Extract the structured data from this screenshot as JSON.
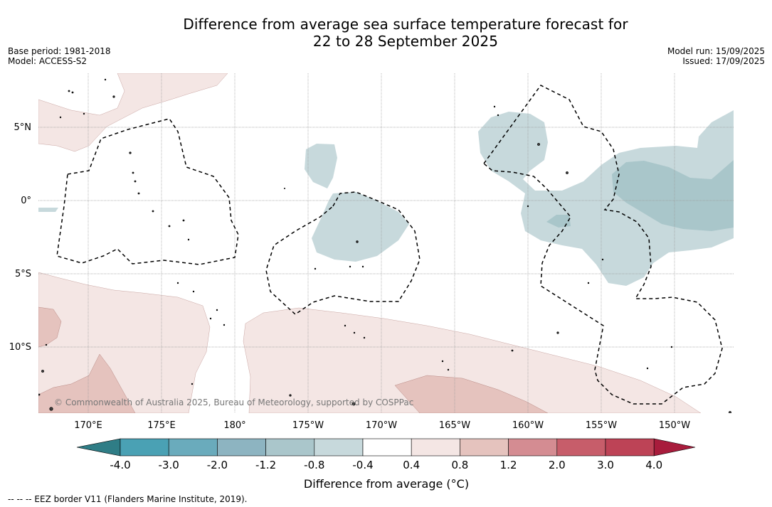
{
  "title_line1": "Difference from average sea surface temperature forecast for",
  "title_line2": "22 to 28 September 2025",
  "meta_left": {
    "base_period": "Base period: 1981-2018",
    "model": "Model: ACCESS-S2"
  },
  "meta_right": {
    "model_run": "Model run: 15/09/2025",
    "issued": "Issued: 17/09/2025"
  },
  "lon_labels": [
    "170°E",
    "175°E",
    "180°",
    "175°W",
    "170°W",
    "165°W",
    "160°W",
    "155°W",
    "150°W"
  ],
  "lat_labels": [
    "5°N",
    "0°",
    "5°S",
    "10°S"
  ],
  "credit": "© Commonwealth of Australia 2025, Bureau of Meteorology, supported by COSPPac",
  "colorbar": {
    "ticks": [
      "-4.0",
      "-3.0",
      "-2.0",
      "-1.2",
      "-0.8",
      "-0.4",
      "0.4",
      "0.8",
      "1.2",
      "2.0",
      "3.0",
      "4.0"
    ],
    "colors": [
      "#2f7d86",
      "#4aa1b4",
      "#6aabbc",
      "#8db4c1",
      "#aac6cb",
      "#c7d9dc",
      "#ffffff",
      "#f4e6e4",
      "#e5c3be",
      "#d48c92",
      "#c75d6a",
      "#bd4356",
      "#a81c3c"
    ],
    "label": "Difference from average (°C)"
  },
  "footer": "--  --  -- EEZ border V11 (Flanders Marine Institute, 2019)."
}
